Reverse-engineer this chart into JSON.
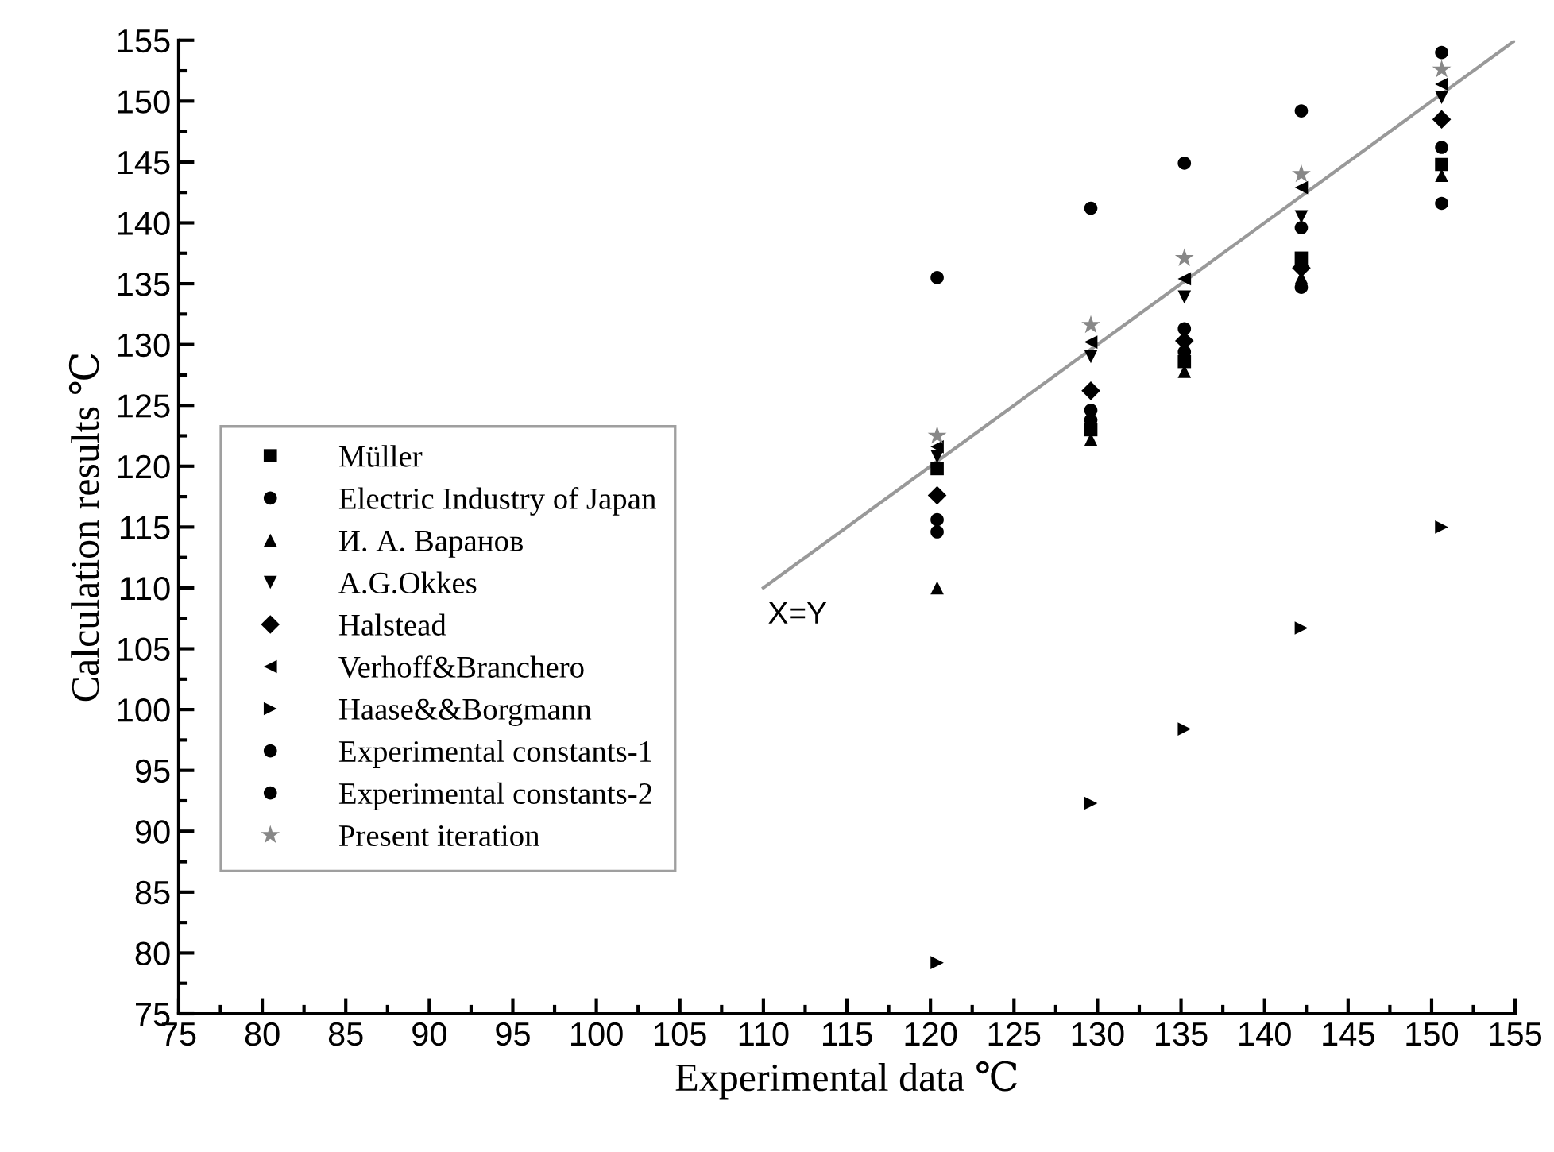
{
  "chart_data": {
    "type": "scatter",
    "xlabel": "Experimental data ℃",
    "ylabel": "Calculation results ℃",
    "xlim": [
      75,
      155
    ],
    "ylim": [
      75,
      155
    ],
    "xticks": [
      75,
      80,
      85,
      90,
      95,
      100,
      105,
      110,
      115,
      120,
      125,
      130,
      135,
      140,
      145,
      150,
      155
    ],
    "yticks": [
      75,
      80,
      85,
      90,
      95,
      100,
      105,
      110,
      115,
      120,
      125,
      130,
      135,
      140,
      145,
      150,
      155
    ],
    "grid": false,
    "legend": "left",
    "x": [
      120.4,
      129.6,
      135.2,
      142.2,
      150.6
    ],
    "series": [
      {
        "name": "Müller",
        "color": "#000000",
        "marker": "square",
        "values": [
          119.8,
          123.0,
          128.6,
          137.1,
          144.8
        ]
      },
      {
        "name": "Electric Industry of Japan",
        "color": "#000000",
        "marker": "circle",
        "values": [
          115.6,
          124.6,
          131.3,
          139.6,
          146.2
        ]
      },
      {
        "name": "И. А. Варанов",
        "color": "#000000",
        "marker": "triangle",
        "values": [
          110.0,
          122.2,
          127.8,
          135.5,
          143.9
        ]
      },
      {
        "name": "A.G.Okkes",
        "color": "#000000",
        "marker": "triangle_down",
        "values": [
          120.8,
          129.0,
          133.9,
          140.5,
          150.3
        ]
      },
      {
        "name": "Halstead",
        "color": "#000000",
        "marker": "diamond",
        "values": [
          117.6,
          126.2,
          130.3,
          136.3,
          148.5
        ]
      },
      {
        "name": "Verhoff&Branchero",
        "color": "#000000",
        "marker": "triangle_left",
        "values": [
          121.6,
          130.2,
          135.4,
          142.9,
          151.4
        ]
      },
      {
        "name": "Haase&&Borgmann",
        "color": "#000000",
        "marker": "triangle_right",
        "values": [
          79.2,
          92.3,
          98.4,
          106.7,
          115.0
        ]
      },
      {
        "name": "Experimental constants-1",
        "color": "#000000",
        "marker": "circle",
        "values": [
          135.5,
          141.2,
          144.9,
          149.2,
          154.0
        ]
      },
      {
        "name": "Experimental constants-2",
        "color": "#000000",
        "marker": "circle",
        "values": [
          114.6,
          123.8,
          129.4,
          134.7,
          141.6
        ]
      },
      {
        "name": "Present iteration",
        "color": "#888888",
        "marker": "star",
        "values": [
          122.5,
          131.6,
          137.1,
          144.0,
          152.6
        ]
      },
      {
        "type": "line",
        "color": "#999999",
        "marker": "none",
        "x": [
          110,
          155
        ],
        "values": [
          110,
          155
        ]
      }
    ],
    "annotations": [
      "X=Y"
    ]
  }
}
